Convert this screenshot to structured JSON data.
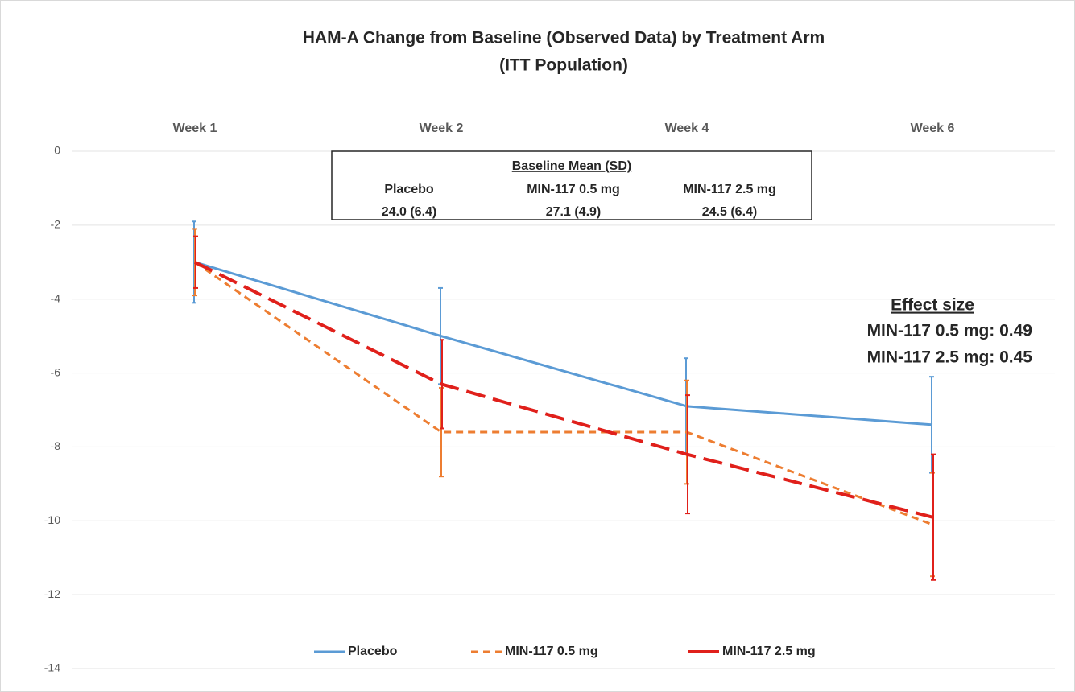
{
  "chart_data": {
    "type": "line",
    "title": "HAM-A Change from Baseline (Observed Data) by Treatment Arm",
    "subtitle": "(ITT Population)",
    "categories": [
      "Week 1",
      "Week 2",
      "Week 4",
      "Week 6"
    ],
    "series": [
      {
        "name": "Placebo",
        "color": "#5b9bd5",
        "dash": "solid",
        "values": [
          -3.0,
          -5.0,
          -6.9,
          -7.4
        ],
        "errors": [
          1.1,
          1.3,
          1.3,
          1.3
        ]
      },
      {
        "name": "MIN-117 0.5 mg",
        "color": "#ed7d31",
        "dash": "short",
        "values": [
          -3.0,
          -7.6,
          -7.6,
          -10.1
        ],
        "errors": [
          0.9,
          1.2,
          1.4,
          1.4
        ]
      },
      {
        "name": "MIN-117 2.5 mg",
        "color": "#e0201b",
        "dash": "long",
        "values": [
          -3.0,
          -6.3,
          -8.2,
          -9.9
        ],
        "errors": [
          0.7,
          1.2,
          1.6,
          1.7
        ]
      }
    ],
    "ylim": [
      -14,
      0
    ],
    "yticks": [
      0,
      -2,
      -4,
      -6,
      -8,
      -10,
      -12,
      -14
    ],
    "grid": true,
    "legend": "bottom",
    "baseline_table": {
      "title": "Baseline Mean (SD)",
      "columns": [
        "Placebo",
        "MIN-117 0.5 mg",
        "MIN-117 2.5 mg"
      ],
      "values": [
        "24.0 (6.4)",
        "27.1 (4.9)",
        "24.5 (6.4)"
      ]
    },
    "effect_size": {
      "title": "Effect size",
      "lines": [
        "MIN-117 0.5 mg: 0.49",
        "MIN-117 2.5 mg: 0.45"
      ]
    }
  }
}
